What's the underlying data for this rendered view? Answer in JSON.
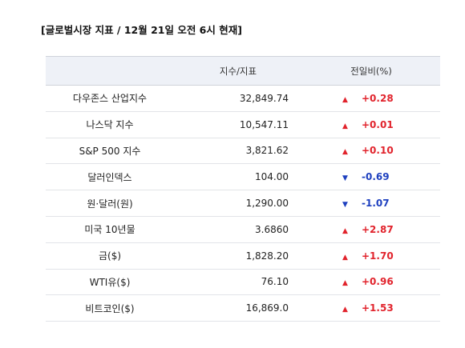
{
  "title": "[글로벌시장 지표 / 12월 21일 오전 6시 현재]",
  "table": {
    "headers": [
      "",
      "지수/지표",
      "전일비(%)"
    ],
    "rows": [
      {
        "name": "다우존스 산업지수",
        "value": "32,849.74",
        "direction": "up",
        "arrow": "▲",
        "change": "+0.28"
      },
      {
        "name": "나스닥 지수",
        "value": "10,547.11",
        "direction": "up",
        "arrow": "▲",
        "change": "+0.01"
      },
      {
        "name": "S&P 500 지수",
        "value": "3,821.62",
        "direction": "up",
        "arrow": "▲",
        "change": "+0.10"
      },
      {
        "name": "달러인덱스",
        "value": "104.00",
        "direction": "down",
        "arrow": "▼",
        "change": "-0.69"
      },
      {
        "name": "원·달러(원)",
        "value": "1,290.00",
        "direction": "down",
        "arrow": "▼",
        "change": "-1.07"
      },
      {
        "name": "미국 10년물",
        "value": "3.6860",
        "direction": "up",
        "arrow": "▲",
        "change": "+2.87"
      },
      {
        "name": "금($)",
        "value": "1,828.20",
        "direction": "up",
        "arrow": "▲",
        "change": "+1.70"
      },
      {
        "name": "WTI유($)",
        "value": "76.10",
        "direction": "up",
        "arrow": "▲",
        "change": "+0.96"
      },
      {
        "name": "비트코인($)",
        "value": "16,869.0",
        "direction": "up",
        "arrow": "▲",
        "change": "+1.53"
      }
    ]
  },
  "colors": {
    "up": "#e1232c",
    "down": "#1d3fbf",
    "header_bg": "#eef1f7"
  }
}
